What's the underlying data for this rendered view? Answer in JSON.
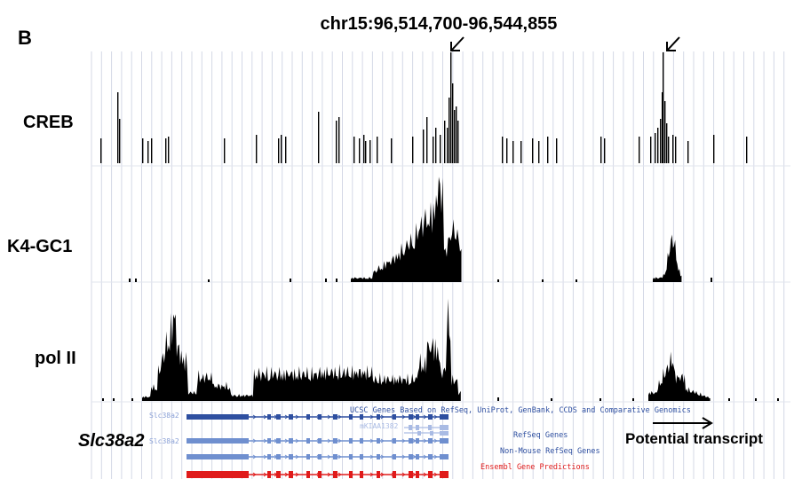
{
  "figure": {
    "panel_letter": "B",
    "region": "chr15:96,514,700-96,544,855",
    "gene_name": "Slc38a2",
    "potential_transcript_label": "Potential transcript"
  },
  "tracks": [
    {
      "label": "CREB",
      "color": "#000000"
    },
    {
      "label": "K4-GC1",
      "color": "#000000"
    },
    {
      "label": "pol II",
      "color": "#000000"
    }
  ],
  "annotation": {
    "ucsc_track_title": "UCSC Genes Based on RefSeq, UniProt, GenBank, CCDS and Comparative Genomics",
    "refseq_title": "RefSeq Genes",
    "nonmouse_title": "Non-Mouse RefSeq Genes",
    "ensembl_title": "Ensembl Gene Predictions",
    "ucsc_gene_name": "Slc38a2",
    "alt_transcript_name": "mKIAA1382",
    "refseq_gene_name": "Slc38a2",
    "colors": {
      "ucsc": "#2e4fa0",
      "gene_model": "#6f8fcf",
      "light": "#a9bbe4",
      "ensembl": "#e01b1b"
    }
  },
  "arrow_icon": "down-left-arrow",
  "transcript_arrow_icon": "right-arrow"
}
